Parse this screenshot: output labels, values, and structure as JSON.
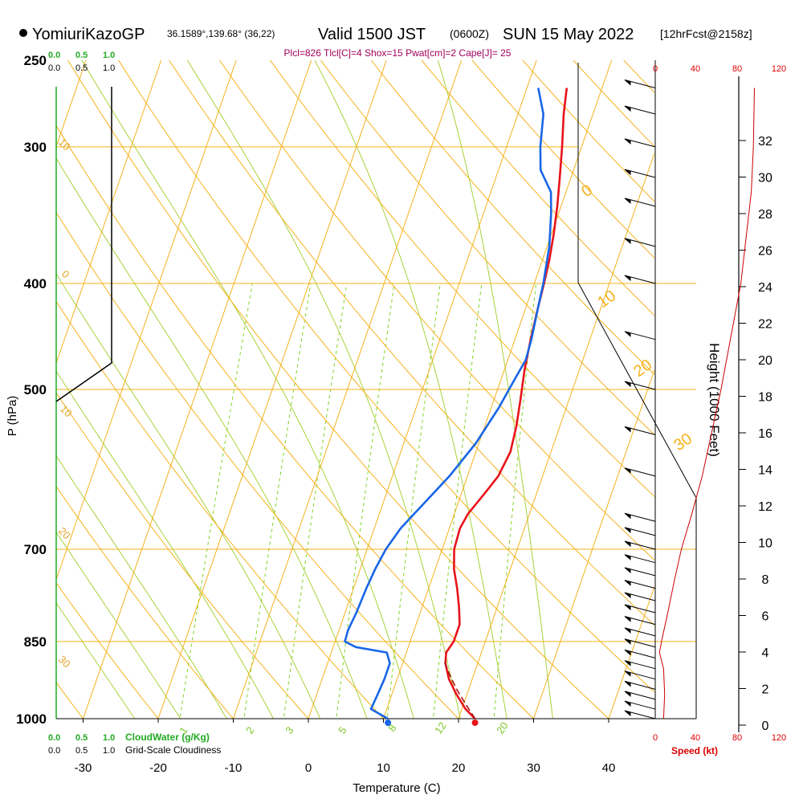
{
  "header": {
    "station": "YomiuriKazoGP",
    "coords": "36.1589°,139.68° (36,22)",
    "valid": "Valid 1500 JST",
    "zulu": "(0600Z)",
    "date": "SUN 15 May 2022",
    "forecast": "[12hrFcst@2158z]",
    "indices": "Plcl=826 Tlcl[C]=4 Shox=15 Pwat[cm]=2 Cape[J]= 25"
  },
  "colors": {
    "temperature": "#e8131b",
    "dewpoint": "#1866e6",
    "isotherm_isobar": "#f5b21c",
    "mixing_ratio": "#7ed321",
    "moist_adiabat": "#a8d23a",
    "cloudwater": "#22aa22",
    "speed": "#dd0000",
    "indices": "#a0005a"
  },
  "left_scales": {
    "cloudwater_top": [
      "0.0",
      "0.5",
      "1.0"
    ],
    "cloudiness_top": [
      "0.0",
      "0.5",
      "1.0"
    ],
    "cloudwater_bottom": [
      "0.0",
      "0.5",
      "1.0"
    ],
    "cloudiness_bottom": [
      "0.0",
      "0.5",
      "1.0"
    ],
    "cloudwater_label": "CloudWater (g/Kg)",
    "cloudiness_label": "Grid-Scale Cloudiness"
  },
  "chart_data": {
    "type": "line",
    "title": "Skew-T log-P sounding, YomiuriKazoGP, Valid 1500 JST SUN 15 May 2022",
    "xlabel": "Temperature (C)",
    "ylabel": "P (hPa)",
    "xlim": [
      -33,
      46
    ],
    "ylim": [
      1000,
      250
    ],
    "x_ticks": [
      -30,
      -20,
      -10,
      0,
      10,
      20,
      30,
      40
    ],
    "pressure_ticks": [
      250,
      300,
      400,
      500,
      700,
      850,
      1000
    ],
    "pressure_labels": [
      "250",
      "300",
      "400",
      "500",
      "700",
      "850",
      "1000"
    ],
    "mixing_ratio_labels": [
      "1",
      "2",
      "3",
      "5",
      "8",
      "12",
      "20"
    ],
    "isotherm_labels": [
      "10",
      "0",
      "10",
      "20",
      "30"
    ],
    "dry_adiabat_labels": [
      "0",
      "10",
      "20",
      "30"
    ],
    "series": [
      {
        "name": "Temperature",
        "points": [
          {
            "p": 1000,
            "t": 22.2
          },
          {
            "p": 980,
            "t": 20.5
          },
          {
            "p": 950,
            "t": 18.6
          },
          {
            "p": 920,
            "t": 16.9
          },
          {
            "p": 890,
            "t": 15.7
          },
          {
            "p": 870,
            "t": 15.3
          },
          {
            "p": 850,
            "t": 15.8
          },
          {
            "p": 820,
            "t": 15.8
          },
          {
            "p": 790,
            "t": 14.9
          },
          {
            "p": 760,
            "t": 13.8
          },
          {
            "p": 730,
            "t": 12.5
          },
          {
            "p": 700,
            "t": 11.6
          },
          {
            "p": 670,
            "t": 11.4
          },
          {
            "p": 650,
            "t": 11.8
          },
          {
            "p": 620,
            "t": 13.2
          },
          {
            "p": 600,
            "t": 14.1
          },
          {
            "p": 570,
            "t": 14.6
          },
          {
            "p": 540,
            "t": 14.2
          },
          {
            "p": 510,
            "t": 13.5
          },
          {
            "p": 480,
            "t": 12.7
          },
          {
            "p": 450,
            "t": 12.1
          },
          {
            "p": 420,
            "t": 11.6
          },
          {
            "p": 400,
            "t": 11.3
          },
          {
            "p": 380,
            "t": 10.9
          },
          {
            "p": 360,
            "t": 10.3
          },
          {
            "p": 340,
            "t": 9.5
          },
          {
            "p": 320,
            "t": 8.5
          },
          {
            "p": 300,
            "t": 7.4
          },
          {
            "p": 280,
            "t": 6.1
          },
          {
            "p": 265,
            "t": 5.3
          }
        ]
      },
      {
        "name": "Dewpoint",
        "points": [
          {
            "p": 1000,
            "t": 10.6
          },
          {
            "p": 980,
            "t": 7.9
          },
          {
            "p": 950,
            "t": 8.1
          },
          {
            "p": 920,
            "t": 8.3
          },
          {
            "p": 890,
            "t": 8.3
          },
          {
            "p": 870,
            "t": 7.4
          },
          {
            "p": 860,
            "t": 3.0
          },
          {
            "p": 850,
            "t": 1.3
          },
          {
            "p": 830,
            "t": 1.2
          },
          {
            "p": 800,
            "t": 1.5
          },
          {
            "p": 760,
            "t": 1.7
          },
          {
            "p": 730,
            "t": 2.0
          },
          {
            "p": 700,
            "t": 2.5
          },
          {
            "p": 670,
            "t": 3.5
          },
          {
            "p": 640,
            "t": 5.2
          },
          {
            "p": 600,
            "t": 7.6
          },
          {
            "p": 560,
            "t": 9.6
          },
          {
            "p": 520,
            "t": 11.0
          },
          {
            "p": 490,
            "t": 11.8
          },
          {
            "p": 470,
            "t": 12.4
          },
          {
            "p": 450,
            "t": 12.2
          },
          {
            "p": 420,
            "t": 11.6
          },
          {
            "p": 400,
            "t": 11.2
          },
          {
            "p": 370,
            "t": 10.3
          },
          {
            "p": 345,
            "t": 9.0
          },
          {
            "p": 330,
            "t": 8.0
          },
          {
            "p": 315,
            "t": 5.6
          },
          {
            "p": 300,
            "t": 4.5
          },
          {
            "p": 280,
            "t": 3.4
          },
          {
            "p": 265,
            "t": 1.5
          }
        ]
      },
      {
        "name": "Parcel",
        "points": [
          {
            "p": 1000,
            "t": 22.2
          },
          {
            "p": 970,
            "t": 20.3
          },
          {
            "p": 940,
            "t": 18.4
          },
          {
            "p": 910,
            "t": 16.7
          },
          {
            "p": 885,
            "t": 15.4
          }
        ]
      }
    ],
    "surface_temperature": 22.2,
    "surface_dewpoint": 10.6,
    "height_axis": {
      "label": "Height (1000 Feet)",
      "ticks": [
        0,
        2,
        4,
        6,
        8,
        10,
        12,
        14,
        16,
        18,
        20,
        22,
        24,
        26,
        28,
        30,
        32
      ]
    },
    "speed_axis": {
      "label": "Speed (kt)",
      "ticks_top": [
        0,
        40,
        80,
        120
      ],
      "ticks_bottom": [
        0,
        40,
        80,
        120
      ]
    },
    "wind_speed_profile_kt": [
      {
        "p": 1000,
        "kt": 8
      },
      {
        "p": 950,
        "kt": 9
      },
      {
        "p": 900,
        "kt": 8
      },
      {
        "p": 870,
        "kt": 4
      },
      {
        "p": 850,
        "kt": 6
      },
      {
        "p": 800,
        "kt": 12
      },
      {
        "p": 750,
        "kt": 18
      },
      {
        "p": 700,
        "kt": 25
      },
      {
        "p": 650,
        "kt": 35
      },
      {
        "p": 600,
        "kt": 45
      },
      {
        "p": 500,
        "kt": 63
      },
      {
        "p": 400,
        "kt": 82
      },
      {
        "p": 330,
        "kt": 92
      },
      {
        "p": 300,
        "kt": 94
      },
      {
        "p": 265,
        "kt": 95
      }
    ],
    "wind_barb_levels_hpa": [
      1000,
      980,
      960,
      940,
      920,
      900,
      880,
      860,
      840,
      820,
      800,
      780,
      760,
      740,
      720,
      700,
      680,
      660,
      600,
      550,
      500,
      450,
      400,
      370,
      340,
      320,
      300,
      280,
      265
    ]
  }
}
